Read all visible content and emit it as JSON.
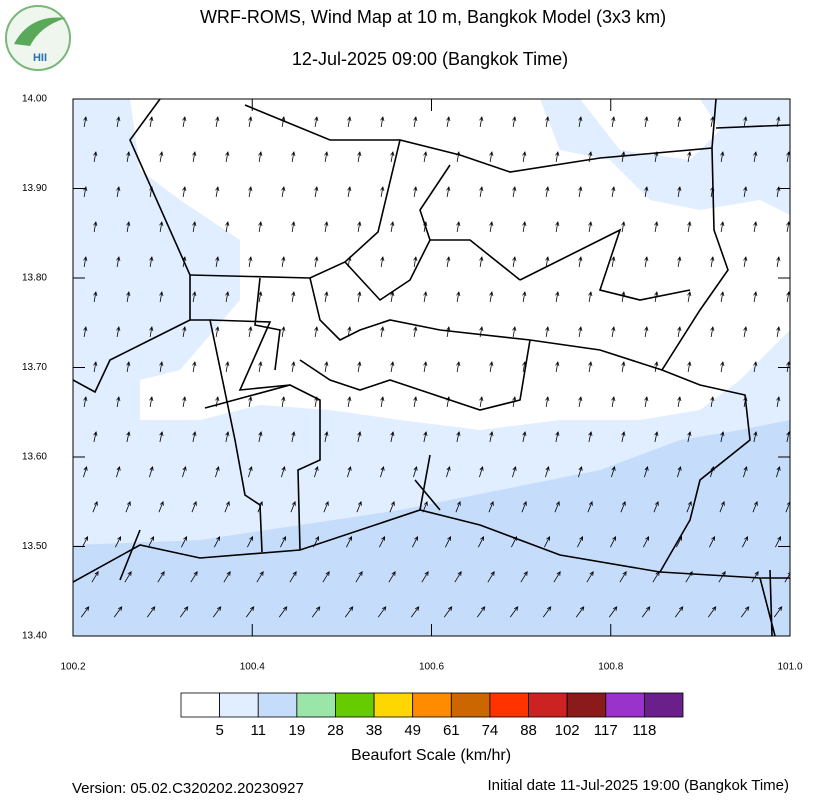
{
  "header": {
    "title": "WRF-ROMS, Wind Map at 10 m, Bangkok Model (3x3 km)",
    "subtitle": "12-Jul-2025 09:00 (Bangkok Time)",
    "logo": "HII"
  },
  "chart_data": {
    "type": "map",
    "xlim": [
      100.2,
      101.0
    ],
    "xticks": [
      100.2,
      100.4,
      100.6,
      100.8,
      {
        "value": 101.0,
        "label": "101.0"
      }
    ],
    "ylim": [
      13.4,
      14.0
    ],
    "yticks": [
      {
        "value": 13.4,
        "label": "13.40"
      },
      {
        "value": 13.5,
        "label": "13.50"
      },
      {
        "value": 13.6,
        "label": "13.60"
      },
      {
        "value": 13.7,
        "label": "13.70"
      },
      {
        "value": 13.8,
        "label": "13.80"
      },
      {
        "value": 13.9,
        "label": "13.90"
      },
      {
        "value": 14.0,
        "label": "14.00"
      }
    ],
    "colorbar": {
      "title": "Beaufort Scale (km/hr)",
      "colors": [
        "#ffffff",
        "#e1eeff",
        "#c6dcfb",
        "#99e6a8",
        "#66cc00",
        "#ffd700",
        "#ff8c00",
        "#cc6600",
        "#ff3300",
        "#cc2222",
        "#8b1a1a",
        "#9933cc",
        "#6a1f8a"
      ],
      "levels": [
        5,
        11,
        19,
        28,
        38,
        49,
        61,
        74,
        88,
        102,
        117,
        118
      ]
    }
  },
  "footer": {
    "version": "Version: 05.02.C320202.20230927",
    "initial": "Initial date 11-Jul-2025 19:00 (Bangkok Time)"
  }
}
